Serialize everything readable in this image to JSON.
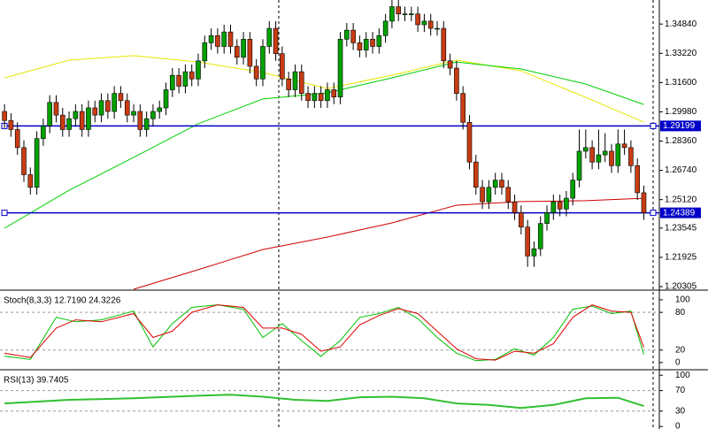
{
  "chart_data": [
    {
      "type": "candlestick",
      "up_color": "#00a000",
      "down_color": "#c83c14",
      "xlim": [
        -0.7,
        101.4
      ],
      "ylim": [
        1.2016,
        1.3617
      ],
      "yticks": [
        {
          "value": 1.3484,
          "label": "1.34840"
        },
        {
          "value": 1.3322,
          "label": "1.33220"
        },
        {
          "value": 1.316,
          "label": "1.31600"
        },
        {
          "value": 1.2998,
          "label": "1.29980"
        },
        {
          "value": 1.2836,
          "label": "1.28360"
        },
        {
          "value": 1.2674,
          "label": "1.26740"
        },
        {
          "value": 1.2512,
          "label": "1.25120"
        },
        {
          "value": 1.23545,
          "label": "1.23545"
        },
        {
          "value": 1.21925,
          "label": "1.21925"
        },
        {
          "value": 1.20305,
          "label": "1.20305"
        }
      ],
      "hlines": [
        1.29199,
        1.24389
      ],
      "hline_color": "#0000c8",
      "ohlc": [
        [
          1.3,
          1.304,
          1.291,
          1.295
        ],
        [
          1.295,
          1.299,
          1.286,
          1.29
        ],
        [
          1.29,
          1.294,
          1.276,
          1.28
        ],
        [
          1.28,
          1.284,
          1.261,
          1.265
        ],
        [
          1.265,
          1.269,
          1.254,
          1.258
        ],
        [
          1.258,
          1.289,
          1.254,
          1.285
        ],
        [
          1.285,
          1.296,
          1.281,
          1.292
        ],
        [
          1.292,
          1.309,
          1.288,
          1.305
        ],
        [
          1.305,
          1.309,
          1.294,
          1.298
        ],
        [
          1.298,
          1.302,
          1.286,
          1.29
        ],
        [
          1.29,
          1.3,
          1.286,
          1.296
        ],
        [
          1.296,
          1.304,
          1.292,
          1.3
        ],
        [
          1.3,
          1.304,
          1.286,
          1.29
        ],
        [
          1.29,
          1.306,
          1.286,
          1.302
        ],
        [
          1.302,
          1.306,
          1.294,
          1.298
        ],
        [
          1.298,
          1.31,
          1.294,
          1.306
        ],
        [
          1.306,
          1.31,
          1.296,
          1.3
        ],
        [
          1.3,
          1.314,
          1.296,
          1.31
        ],
        [
          1.31,
          1.314,
          1.302,
          1.306
        ],
        [
          1.306,
          1.31,
          1.294,
          1.298
        ],
        [
          1.298,
          1.304,
          1.294,
          1.3
        ],
        [
          1.3,
          1.304,
          1.286,
          1.29
        ],
        [
          1.29,
          1.3,
          1.286,
          1.296
        ],
        [
          1.296,
          1.304,
          1.292,
          1.3
        ],
        [
          1.3,
          1.306,
          1.296,
          1.302
        ],
        [
          1.302,
          1.316,
          1.298,
          1.312
        ],
        [
          1.312,
          1.324,
          1.308,
          1.32
        ],
        [
          1.32,
          1.324,
          1.31,
          1.314
        ],
        [
          1.314,
          1.326,
          1.31,
          1.322
        ],
        [
          1.322,
          1.326,
          1.314,
          1.318
        ],
        [
          1.318,
          1.332,
          1.314,
          1.328
        ],
        [
          1.328,
          1.342,
          1.324,
          1.338
        ],
        [
          1.338,
          1.346,
          1.334,
          1.342
        ],
        [
          1.342,
          1.346,
          1.332,
          1.336
        ],
        [
          1.336,
          1.348,
          1.332,
          1.344
        ],
        [
          1.344,
          1.348,
          1.332,
          1.336
        ],
        [
          1.336,
          1.34,
          1.326,
          1.33
        ],
        [
          1.33,
          1.344,
          1.326,
          1.34
        ],
        [
          1.34,
          1.344,
          1.321,
          1.325
        ],
        [
          1.325,
          1.329,
          1.314,
          1.318
        ],
        [
          1.318,
          1.34,
          1.314,
          1.336
        ],
        [
          1.336,
          1.35,
          1.332,
          1.346
        ],
        [
          1.346,
          1.35,
          1.328,
          1.332
        ],
        [
          1.332,
          1.336,
          1.314,
          1.318
        ],
        [
          1.318,
          1.322,
          1.308,
          1.312
        ],
        [
          1.312,
          1.326,
          1.308,
          1.322
        ],
        [
          1.322,
          1.326,
          1.306,
          1.31
        ],
        [
          1.31,
          1.314,
          1.302,
          1.306
        ],
        [
          1.306,
          1.314,
          1.302,
          1.31
        ],
        [
          1.31,
          1.314,
          1.302,
          1.306
        ],
        [
          1.306,
          1.316,
          1.302,
          1.312
        ],
        [
          1.312,
          1.316,
          1.304,
          1.308
        ],
        [
          1.308,
          1.344,
          1.304,
          1.34
        ],
        [
          1.34,
          1.349,
          1.336,
          1.345
        ],
        [
          1.345,
          1.349,
          1.334,
          1.338
        ],
        [
          1.338,
          1.342,
          1.33,
          1.334
        ],
        [
          1.334,
          1.344,
          1.33,
          1.34
        ],
        [
          1.34,
          1.344,
          1.332,
          1.336
        ],
        [
          1.336,
          1.346,
          1.332,
          1.342
        ],
        [
          1.342,
          1.354,
          1.338,
          1.35
        ],
        [
          1.35,
          1.362,
          1.346,
          1.358
        ],
        [
          1.358,
          1.362,
          1.35,
          1.354
        ],
        [
          1.354,
          1.358,
          1.35,
          1.354
        ],
        [
          1.354,
          1.358,
          1.35,
          1.354
        ],
        [
          1.354,
          1.358,
          1.344,
          1.348
        ],
        [
          1.348,
          1.354,
          1.344,
          1.35
        ],
        [
          1.35,
          1.354,
          1.342,
          1.346
        ],
        [
          1.346,
          1.35,
          1.342,
          1.346
        ],
        [
          1.346,
          1.35,
          1.324,
          1.328
        ],
        [
          1.328,
          1.332,
          1.32,
          1.324
        ],
        [
          1.324,
          1.328,
          1.306,
          1.31
        ],
        [
          1.31,
          1.314,
          1.29,
          1.294
        ],
        [
          1.294,
          1.298,
          1.268,
          1.272
        ],
        [
          1.272,
          1.276,
          1.254,
          1.258
        ],
        [
          1.258,
          1.262,
          1.246,
          1.25
        ],
        [
          1.25,
          1.262,
          1.246,
          1.258
        ],
        [
          1.258,
          1.266,
          1.254,
          1.262
        ],
        [
          1.262,
          1.266,
          1.254,
          1.258
        ],
        [
          1.258,
          1.262,
          1.246,
          1.25
        ],
        [
          1.25,
          1.254,
          1.24,
          1.244
        ],
        [
          1.244,
          1.248,
          1.232,
          1.236
        ],
        [
          1.236,
          1.24,
          1.214,
          1.22
        ],
        [
          1.22,
          1.228,
          1.214,
          1.224
        ],
        [
          1.224,
          1.242,
          1.22,
          1.238
        ],
        [
          1.238,
          1.248,
          1.234,
          1.244
        ],
        [
          1.244,
          1.254,
          1.24,
          1.25
        ],
        [
          1.25,
          1.254,
          1.242,
          1.246
        ],
        [
          1.246,
          1.256,
          1.242,
          1.252
        ],
        [
          1.252,
          1.266,
          1.248,
          1.262
        ],
        [
          1.262,
          1.29,
          1.258,
          1.278
        ],
        [
          1.278,
          1.29,
          1.274,
          1.28
        ],
        [
          1.28,
          1.284,
          1.268,
          1.272
        ],
        [
          1.272,
          1.29,
          1.268,
          1.276
        ],
        [
          1.276,
          1.288,
          1.272,
          1.278
        ],
        [
          1.278,
          1.282,
          1.266,
          1.27
        ],
        [
          1.27,
          1.29,
          1.266,
          1.282
        ],
        [
          1.282,
          1.29,
          1.276,
          1.28
        ],
        [
          1.28,
          1.284,
          1.266,
          1.27
        ],
        [
          1.27,
          1.274,
          1.251,
          1.255
        ],
        [
          1.255,
          1.259,
          1.24,
          1.2439
        ]
      ],
      "series": [
        {
          "color": "#e6e600",
          "x": [
            0,
            10,
            20,
            30,
            40,
            50,
            60,
            70,
            80,
            90,
            99
          ],
          "values": [
            1.3186,
            1.3284,
            1.3309,
            1.3274,
            1.3216,
            1.3127,
            1.3201,
            1.3284,
            1.3225,
            1.3078,
            1.2941
          ]
        },
        {
          "color": "#00d000",
          "x": [
            0,
            10,
            20,
            30,
            40,
            50,
            60,
            70,
            80,
            90,
            99
          ],
          "values": [
            1.2354,
            1.2564,
            1.2746,
            1.2932,
            1.3069,
            1.3103,
            1.3186,
            1.3274,
            1.3235,
            1.3152,
            1.3039
          ]
        },
        {
          "color": "#d00000",
          "x": [
            20,
            30,
            40,
            50,
            60,
            70,
            80,
            90,
            99
          ],
          "values": [
            1.2016,
            1.2124,
            1.2236,
            1.2305,
            1.2383,
            1.2481,
            1.2501,
            1.2506,
            1.252
          ]
        }
      ]
    },
    {
      "type": "line",
      "title": "Stoch(8,3,3) 12.7190 24.3226",
      "xlim": [
        -0.7,
        101.4
      ],
      "ylim": [
        -10,
        114
      ],
      "yticks": [
        100,
        80,
        20,
        0
      ],
      "levels": [
        80,
        20
      ],
      "x": [
        0,
        4,
        8,
        11,
        15,
        20,
        23,
        26,
        29,
        33,
        37,
        40,
        43,
        46,
        49,
        52,
        55,
        58,
        61,
        64,
        67,
        70,
        73,
        76,
        79,
        82,
        85,
        88,
        91,
        94,
        97,
        99
      ],
      "series": [
        {
          "color": "#00c000",
          "values": [
            10,
            5,
            72,
            65,
            68,
            82,
            25,
            62,
            88,
            92,
            85,
            40,
            62,
            35,
            10,
            35,
            72,
            78,
            88,
            70,
            40,
            15,
            3,
            5,
            22,
            12,
            40,
            85,
            90,
            78,
            82,
            12.7
          ]
        },
        {
          "color": "#e00000",
          "values": [
            15,
            8,
            55,
            68,
            65,
            78,
            40,
            50,
            80,
            92,
            88,
            55,
            55,
            45,
            18,
            25,
            60,
            75,
            86,
            78,
            50,
            22,
            6,
            4,
            18,
            15,
            30,
            72,
            92,
            82,
            80,
            24.3
          ]
        }
      ]
    },
    {
      "type": "line",
      "title": "RSI(13) 39.7405",
      "xlim": [
        -0.7,
        101.4
      ],
      "ylim": [
        -5,
        109
      ],
      "yticks": [
        100,
        70,
        30,
        0
      ],
      "levels": [
        70,
        30
      ],
      "x": [
        0,
        10,
        20,
        30,
        35,
        40,
        45,
        50,
        55,
        60,
        65,
        70,
        75,
        80,
        85,
        90,
        95,
        99
      ],
      "series": [
        {
          "color": "#30c030",
          "values": [
            45,
            52,
            55,
            60,
            62,
            58,
            52,
            50,
            57,
            58,
            55,
            45,
            42,
            36,
            42,
            55,
            56,
            39.74
          ]
        }
      ]
    }
  ]
}
